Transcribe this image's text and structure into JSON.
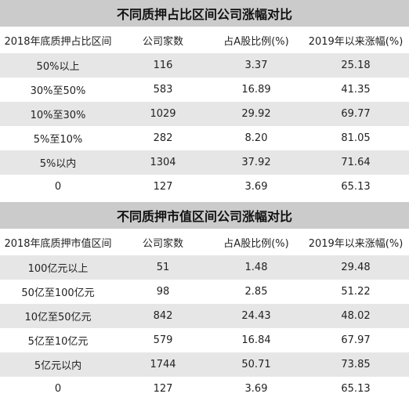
{
  "tables": [
    {
      "title": "不同质押占比区间公司涨幅对比",
      "headers": [
        "2018年底质押占比区间",
        "公司家数",
        "占A股比例(%)",
        "2019年以来涨幅(%)"
      ],
      "rows": [
        [
          "50%以上",
          "116",
          "3.37",
          "25.18"
        ],
        [
          "30%至50%",
          "583",
          "16.89",
          "41.35"
        ],
        [
          "10%至30%",
          "1029",
          "29.92",
          "69.77"
        ],
        [
          "5%至10%",
          "282",
          "8.20",
          "81.05"
        ],
        [
          "5%以内",
          "1304",
          "37.92",
          "71.64"
        ],
        [
          "0",
          "127",
          "3.69",
          "65.13"
        ]
      ]
    },
    {
      "title": "不同质押市值区间公司涨幅对比",
      "headers": [
        "2018年底质押市值区间",
        "公司家数",
        "占A股比例(%)",
        "2019年以来涨幅(%)"
      ],
      "rows": [
        [
          "100亿元以上",
          "51",
          "1.48",
          "29.48"
        ],
        [
          "50亿至100亿元",
          "98",
          "2.85",
          "51.22"
        ],
        [
          "10亿至50亿元",
          "842",
          "24.43",
          "48.02"
        ],
        [
          "5亿至10亿元",
          "579",
          "16.84",
          "67.97"
        ],
        [
          "5亿元以内",
          "1744",
          "50.71",
          "73.85"
        ],
        [
          "0",
          "127",
          "3.69",
          "65.13"
        ]
      ]
    }
  ]
}
